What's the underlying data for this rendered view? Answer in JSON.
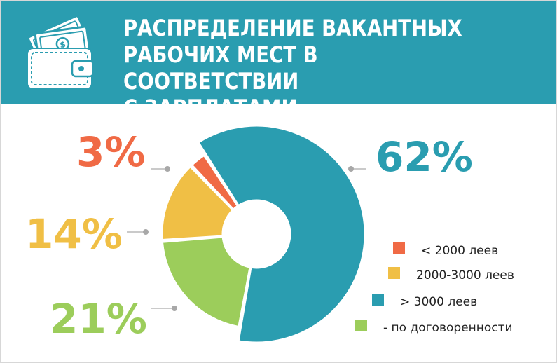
{
  "title": "РАСПРЕДЕЛЕНИЕ ВАКАНТНЫХ\nРАБОЧИХ МЕСТ В СООТВЕТСТВИИ\nС ЗАРПЛАТАМИ",
  "header_icon": "wallet-with-money-icon",
  "colors": {
    "header_bg": "#2a9db0",
    "frame_border": "#d7d7d7"
  },
  "chart_data": {
    "type": "pie",
    "variant": "donut",
    "title": "РАСПРЕДЕЛЕНИЕ ВАКАНТНЫХ РАБОЧИХ МЕСТ В СООТВЕТСТВИИ С ЗАРПЛАТАМИ",
    "legend_position": "bottom-right",
    "slices": [
      {
        "label": "< 2000 леев",
        "value": 3,
        "value_label": "3%",
        "color": "#f06a45"
      },
      {
        "label": "2000-3000 леев",
        "value": 14,
        "value_label": "14%",
        "color": "#f0bf45"
      },
      {
        "label": "> 3000 леев",
        "value": 62,
        "value_label": "62%",
        "color": "#2a9db0"
      },
      {
        "label": "- по договоренности",
        "value": 21,
        "value_label": "21%",
        "color": "#9ccd5b"
      }
    ]
  }
}
